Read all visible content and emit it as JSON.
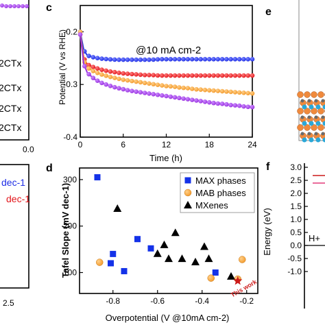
{
  "colors": {
    "blue": "#1f2ee6",
    "red": "#e3161b",
    "orange": "#f39a2b",
    "purple": "#9b34e0",
    "square": "#1432e8",
    "black": "#000000",
    "dark_red": "#cc1a1a",
    "pink": "#e33a78"
  },
  "left_partial": {
    "legend_suffixes": [
      "2CTx",
      "2CTx",
      "2CTx",
      "2CTx"
    ],
    "axis_tick_end": "0.0",
    "tafel_labels": [
      {
        "text": "dec-1",
        "color": "blue"
      },
      {
        "text": "dec-1",
        "color": "red"
      }
    ],
    "x_tick": "2.5"
  },
  "panel_c": {
    "label": "c",
    "annotation": "@10 mA cm-2"
  },
  "panel_d": {
    "label": "d",
    "this_work_label": "This work"
  },
  "panel_e": {
    "label": "e"
  },
  "panel_f": {
    "label": "f",
    "ylabel": "Energy (eV)",
    "ticks": [
      "3.0",
      "2.5",
      "2.0",
      "1.5",
      "1.0",
      "0.5",
      "0.0",
      "-0.5",
      "-1.0"
    ],
    "hplus": "H+"
  },
  "chart_data": [
    {
      "id": "c",
      "type": "line",
      "xlabel": "Time (h)",
      "ylabel": "Potential (V vs RHE)",
      "xlim": [
        0,
        24
      ],
      "ylim": [
        -0.4,
        -0.15
      ],
      "xticks": [
        0,
        6,
        12,
        18,
        24
      ],
      "yticks": [
        -0.2,
        -0.3,
        -0.4
      ],
      "x": [
        0,
        0.5,
        1,
        2,
        3,
        4,
        5,
        6,
        7,
        8,
        9,
        10,
        11,
        12,
        13,
        14,
        15,
        16,
        17,
        18,
        19,
        20,
        21,
        22,
        23,
        24
      ],
      "series": [
        {
          "color": "blue",
          "values": [
            -0.2,
            -0.235,
            -0.245,
            -0.249,
            -0.251,
            -0.252,
            -0.253,
            -0.253,
            -0.253,
            -0.253,
            -0.253,
            -0.253,
            -0.252,
            -0.252,
            -0.252,
            -0.252,
            -0.252,
            -0.252,
            -0.252,
            -0.252,
            -0.252,
            -0.252,
            -0.252,
            -0.252,
            -0.252,
            -0.252
          ]
        },
        {
          "color": "red",
          "values": [
            -0.205,
            -0.25,
            -0.262,
            -0.268,
            -0.272,
            -0.275,
            -0.277,
            -0.279,
            -0.28,
            -0.281,
            -0.282,
            -0.282,
            -0.283,
            -0.283,
            -0.283,
            -0.283,
            -0.283,
            -0.283,
            -0.283,
            -0.283,
            -0.283,
            -0.283,
            -0.283,
            -0.283,
            -0.283,
            -0.283
          ]
        },
        {
          "color": "orange",
          "values": [
            -0.2,
            -0.255,
            -0.268,
            -0.276,
            -0.281,
            -0.285,
            -0.288,
            -0.291,
            -0.293,
            -0.295,
            -0.297,
            -0.299,
            -0.301,
            -0.303,
            -0.304,
            -0.306,
            -0.307,
            -0.309,
            -0.31,
            -0.311,
            -0.312,
            -0.313,
            -0.314,
            -0.315,
            -0.316,
            -0.317
          ]
        },
        {
          "color": "purple",
          "values": [
            -0.205,
            -0.262,
            -0.278,
            -0.29,
            -0.297,
            -0.302,
            -0.306,
            -0.309,
            -0.312,
            -0.314,
            -0.316,
            -0.318,
            -0.32,
            -0.322,
            -0.324,
            -0.326,
            -0.328,
            -0.33,
            -0.332,
            -0.334,
            -0.336,
            -0.337,
            -0.339,
            -0.34,
            -0.342,
            -0.343
          ]
        }
      ]
    },
    {
      "id": "d",
      "type": "scatter",
      "xlabel": "Overpotential (V @10mA cm-2)",
      "ylabel": "Tafel Slope (mV dec-1)",
      "xlim": [
        -0.95,
        -0.15
      ],
      "ylim": [
        55,
        325
      ],
      "xticks": [
        -0.8,
        -0.6,
        -0.4,
        -0.2
      ],
      "yticks": [
        100,
        200,
        300
      ],
      "legend_position": "top-right",
      "series": [
        {
          "name": "MAX phases",
          "marker": "square",
          "color": "square",
          "points": [
            [
              -0.87,
              305
            ],
            [
              -0.81,
              120
            ],
            [
              -0.8,
              140
            ],
            [
              -0.75,
              103
            ],
            [
              -0.69,
              172
            ],
            [
              -0.63,
              152
            ],
            [
              -0.34,
              100
            ]
          ]
        },
        {
          "name": "MAB phases",
          "marker": "circle",
          "color": "orange",
          "points": [
            [
              -0.86,
              122
            ],
            [
              -0.36,
              88
            ],
            [
              -0.24,
              86
            ],
            [
              -0.22,
              128
            ]
          ]
        },
        {
          "name": "MXenes",
          "marker": "triangle",
          "color": "black",
          "points": [
            [
              -0.78,
              238
            ],
            [
              -0.6,
              141
            ],
            [
              -0.57,
              160
            ],
            [
              -0.55,
              130
            ],
            [
              -0.52,
              186
            ],
            [
              -0.49,
              130
            ],
            [
              -0.43,
              123
            ],
            [
              -0.39,
              156
            ],
            [
              -0.37,
              130
            ],
            [
              -0.27,
              92
            ]
          ]
        },
        {
          "name": "This work",
          "marker": "star",
          "color": "dark_red",
          "points": [
            [
              -0.24,
              82
            ]
          ]
        }
      ]
    }
  ]
}
